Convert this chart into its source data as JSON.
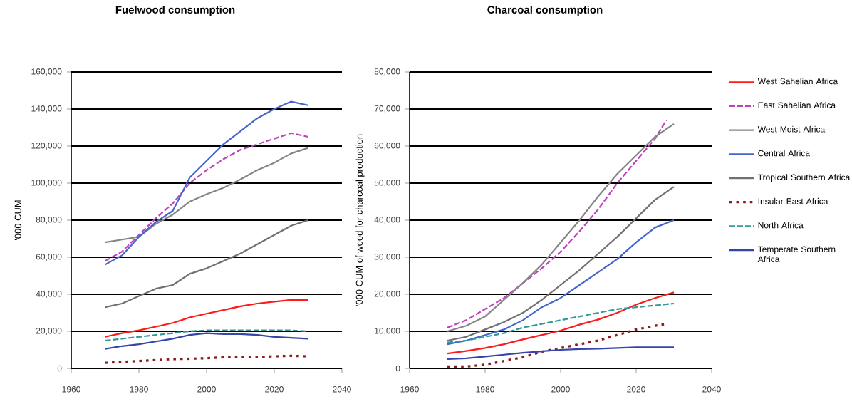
{
  "chart_data": [
    {
      "type": "line",
      "title": "Fuelwood consumption",
      "ylabel": "'000 CUM",
      "x": [
        1970,
        1975,
        1980,
        1985,
        1990,
        1995,
        2000,
        2005,
        2010,
        2015,
        2020,
        2025,
        2030
      ],
      "xlim": [
        1960,
        2040
      ],
      "xticks": [
        1960,
        1980,
        2000,
        2020,
        2040
      ],
      "ylim": [
        0,
        160000
      ],
      "yticks": [
        0,
        {
          "value": 20000,
          "label": "20,000"
        },
        {
          "value": 40000,
          "label": "40,000"
        },
        {
          "value": 60000,
          "label": "60,000"
        },
        {
          "value": 80000,
          "label": "80,000"
        },
        {
          "value": 100000,
          "label": "100,000"
        },
        {
          "value": 120000,
          "label": "120,000"
        },
        {
          "value": 140000,
          "label": "140,000"
        },
        {
          "value": 160000,
          "label": "160,000"
        }
      ],
      "grid": "y",
      "legend": false,
      "marker": "none",
      "series": [
        {
          "color": "#ff1a1a",
          "line_style": "solid",
          "values": [
            17000,
            19000,
            20500,
            22500,
            24500,
            27500,
            29500,
            31500,
            33500,
            35000,
            36000,
            37000,
            37000
          ]
        },
        {
          "color": "#c040c0",
          "line_style": "dashed",
          "values": [
            58000,
            63000,
            72000,
            81000,
            89000,
            100000,
            107000,
            113000,
            118000,
            121000,
            124000,
            127000,
            125000
          ]
        },
        {
          "color": "#858585",
          "line_style": "solid",
          "values": [
            68000,
            69500,
            71000,
            78000,
            83000,
            90000,
            94000,
            97500,
            102000,
            107000,
            111000,
            116000,
            119000
          ]
        },
        {
          "color": "#4466cc",
          "line_style": "solid",
          "values": [
            56000,
            61000,
            71000,
            79000,
            85000,
            103000,
            112000,
            121000,
            128000,
            135000,
            140000,
            144000,
            142000
          ]
        },
        {
          "color": "#707070",
          "line_style": "solid",
          "values": [
            33000,
            35000,
            39000,
            43000,
            45000,
            51000,
            54000,
            58000,
            62000,
            67000,
            72000,
            77000,
            80000
          ]
        },
        {
          "color": "#8b1a1a",
          "line_style": "dotted",
          "values": [
            3000,
            3500,
            4000,
            4500,
            5000,
            5200,
            5500,
            6000,
            6000,
            6200,
            6500,
            6800,
            6500
          ]
        },
        {
          "color": "#339999",
          "line_style": "dashed",
          "values": [
            15000,
            16000,
            17000,
            18000,
            19000,
            20000,
            20500,
            20500,
            20500,
            20500,
            20500,
            20500,
            20000
          ]
        },
        {
          "color": "#3344aa",
          "line_style": "solid",
          "values": [
            10500,
            12000,
            13000,
            14500,
            16000,
            18000,
            19000,
            18500,
            18500,
            18000,
            17000,
            16500,
            16000
          ]
        }
      ]
    },
    {
      "type": "line",
      "title": "Charcoal consumption",
      "ylabel": "'000 CUM of wood for charcoal production",
      "x": [
        1970,
        1975,
        1980,
        1985,
        1990,
        1995,
        2000,
        2005,
        2010,
        2015,
        2020,
        2025,
        2030
      ],
      "xlim": [
        1960,
        2040
      ],
      "xticks": [
        1960,
        1980,
        2000,
        2020,
        2040
      ],
      "ylim": [
        0,
        80000
      ],
      "yticks": [
        0,
        {
          "value": 10000,
          "label": "10,000"
        },
        {
          "value": 20000,
          "label": "20,000"
        },
        {
          "value": 30000,
          "label": "30,000"
        },
        {
          "value": 40000,
          "label": "40,000"
        },
        {
          "value": 50000,
          "label": "50,000"
        },
        {
          "value": 60000,
          "label": "60,000"
        },
        {
          "value": 70000,
          "label": "70,000"
        },
        {
          "value": 80000,
          "label": "80,000"
        }
      ],
      "grid": "y",
      "legend": "right",
      "marker": "none",
      "series": [
        {
          "name": "West Sahelian Africa",
          "color": "#ff1a1a",
          "line_style": "solid",
          "values": [
            4000,
            4700,
            5500,
            6500,
            7800,
            9000,
            10200,
            11800,
            13200,
            15000,
            17200,
            19000,
            20500
          ]
        },
        {
          "name": "East Sahelian Africa",
          "color": "#c040c0",
          "line_style": "dashed",
          "x": [
            1970,
            1975,
            1980,
            1985,
            1990,
            1995,
            2000,
            2005,
            2010,
            2015,
            2020,
            2025,
            2028
          ],
          "values": [
            11000,
            13000,
            16000,
            19000,
            23000,
            27000,
            31500,
            37000,
            43000,
            50000,
            56000,
            62000,
            67000
          ]
        },
        {
          "name": "West Moist Africa",
          "color": "#858585",
          "line_style": "solid",
          "values": [
            10000,
            11500,
            14000,
            18500,
            23000,
            28000,
            34000,
            40000,
            46500,
            52500,
            57500,
            62500,
            66000
          ]
        },
        {
          "name": "Central Africa",
          "color": "#4466cc",
          "line_style": "solid",
          "values": [
            6500,
            7500,
            9000,
            10500,
            13000,
            16500,
            19000,
            22500,
            26000,
            29500,
            34000,
            38000,
            40000
          ]
        },
        {
          "name": "Tropical Southern Africa",
          "color": "#707070",
          "line_style": "solid",
          "values": [
            7500,
            8500,
            10500,
            12500,
            15000,
            18500,
            22500,
            26500,
            31000,
            35500,
            40500,
            45500,
            49000
          ]
        },
        {
          "name": "Insular East Africa",
          "color": "#8b1a1a",
          "line_style": "dotted",
          "x": [
            1970,
            1975,
            1980,
            1985,
            1990,
            1995,
            2000,
            2005,
            2010,
            2015,
            2020,
            2025,
            2028
          ],
          "values": [
            500,
            500,
            1000,
            2000,
            3000,
            4500,
            5500,
            6500,
            7500,
            9000,
            10500,
            11500,
            12000
          ]
        },
        {
          "name": "North Africa",
          "color": "#339999",
          "line_style": "dashed",
          "values": [
            7000,
            7500,
            8500,
            9500,
            11000,
            12000,
            13000,
            14000,
            15000,
            16000,
            16500,
            17000,
            17500
          ]
        },
        {
          "name": "Temperate Southern Africa",
          "color": "#3344aa",
          "line_style": "solid",
          "values": [
            2500,
            2700,
            3200,
            3700,
            4200,
            4600,
            5000,
            5200,
            5300,
            5500,
            5700,
            5700,
            5700
          ]
        }
      ]
    }
  ]
}
